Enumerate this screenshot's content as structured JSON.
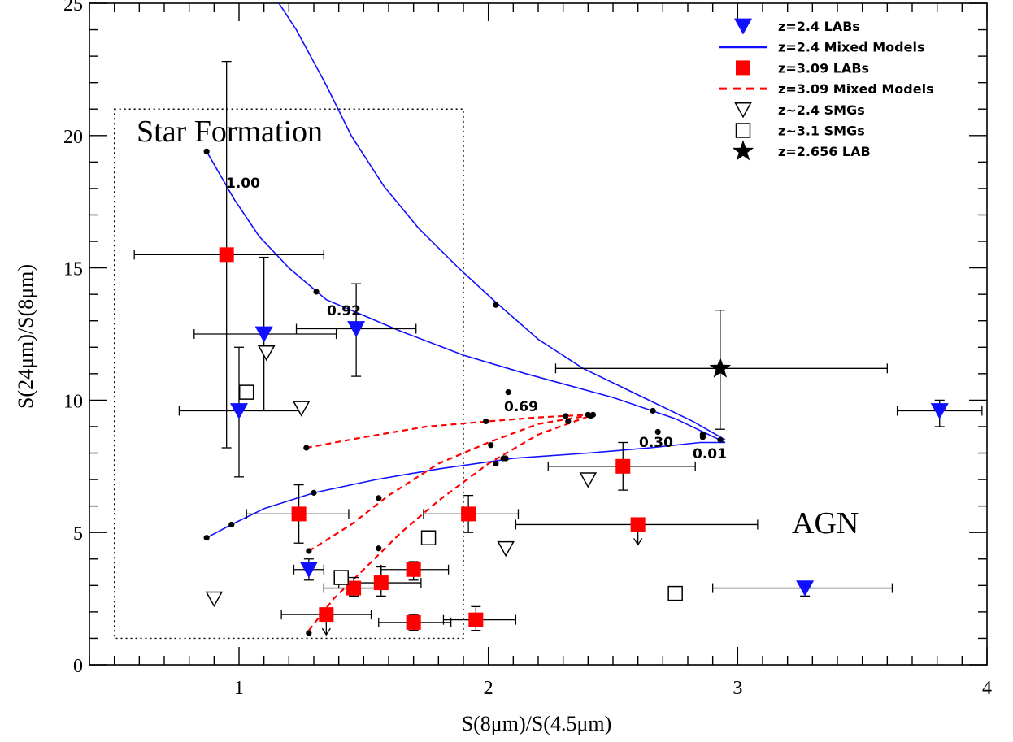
{
  "chart_data": {
    "type": "scatter",
    "xlabel": "S(8μm)/S(4.5μm)",
    "ylabel": "S(24μm)/S(8μm)",
    "xlim": [
      0.4,
      4.0
    ],
    "ylim": [
      0,
      25
    ],
    "xticks": [
      1,
      2,
      3,
      4
    ],
    "yticks": [
      0,
      5,
      10,
      15,
      20,
      25
    ],
    "grid": false,
    "legend_position": "top-right",
    "legend": [
      {
        "label": "z=2.4 LABs",
        "symbol": "triangle-down-filled",
        "color": "#1010ff"
      },
      {
        "label": "z=2.4 Mixed Models",
        "symbol": "solid-line",
        "color": "#1010ff"
      },
      {
        "label": "z=3.09 LABs",
        "symbol": "square-filled",
        "color": "#ff0000"
      },
      {
        "label": "z=3.09 Mixed Models",
        "symbol": "dashed-line",
        "color": "#ff0000"
      },
      {
        "label": "z~2.4 SMGs",
        "symbol": "triangle-down-open",
        "color": "#000000"
      },
      {
        "label": "z~3.1 SMGs",
        "symbol": "square-open",
        "color": "#000000"
      },
      {
        "label": "z=2.656 LAB",
        "symbol": "star-filled",
        "color": "#000000"
      }
    ],
    "annotations": {
      "star_formation": "Star Formation",
      "agn": "AGN",
      "frac_100": "1.00",
      "frac_092": "0.92",
      "frac_069": "0.69",
      "frac_030": "0.30",
      "frac_001": "0.01"
    },
    "star_formation_box": {
      "x": [
        0.5,
        1.9
      ],
      "y": [
        1.0,
        21.0
      ]
    },
    "series": [
      {
        "name": "z=2.4 LABs",
        "marker": "triangle-down-filled",
        "color": "#1010ff",
        "points": [
          {
            "x": 1.1,
            "y": 12.5,
            "xerr": [
              0.82,
              1.39
            ],
            "yerr": [
              9.6,
              15.4
            ]
          },
          {
            "x": 1.47,
            "y": 12.7,
            "xerr": [
              1.23,
              1.71
            ],
            "yerr": [
              10.9,
              14.4
            ]
          },
          {
            "x": 1.0,
            "y": 9.6,
            "xerr": [
              0.76,
              1.25
            ],
            "yerr": [
              7.1,
              12.0
            ]
          },
          {
            "x": 1.28,
            "y": 3.6,
            "xerr": [
              1.22,
              1.34
            ],
            "yerr": [
              3.2,
              4.0
            ]
          },
          {
            "x": 3.81,
            "y": 9.6,
            "xerr": [
              3.64,
              3.98
            ],
            "yerr": [
              9.0,
              10.0
            ]
          },
          {
            "x": 3.27,
            "y": 2.9,
            "xerr": [
              2.9,
              3.62
            ],
            "yerr": [
              2.6,
              3.0
            ]
          }
        ]
      },
      {
        "name": "z=3.09 LABs",
        "marker": "square-filled",
        "color": "#ff0000",
        "points": [
          {
            "x": 0.95,
            "y": 15.5,
            "xerr": [
              0.58,
              1.34
            ],
            "yerr": [
              8.2,
              22.8
            ]
          },
          {
            "x": 1.24,
            "y": 5.7,
            "xerr": [
              1.03,
              1.44
            ],
            "yerr": [
              4.6,
              6.8
            ]
          },
          {
            "x": 1.92,
            "y": 5.7,
            "xerr": [
              1.74,
              2.12
            ],
            "yerr": [
              5.0,
              6.4
            ]
          },
          {
            "x": 2.54,
            "y": 7.5,
            "xerr": [
              2.24,
              2.83
            ],
            "yerr": [
              6.6,
              8.4
            ]
          },
          {
            "x": 2.6,
            "y": 5.3,
            "xerr": [
              2.11,
              3.08
            ],
            "limit": "upper"
          },
          {
            "x": 1.7,
            "y": 3.6,
            "xerr": [
              1.57,
              1.84
            ],
            "yerr": [
              3.2,
              3.9
            ]
          },
          {
            "x": 1.57,
            "y": 3.1,
            "xerr": [
              1.4,
              1.73
            ],
            "yerr": [
              2.6,
              3.7
            ]
          },
          {
            "x": 1.46,
            "y": 2.9,
            "xerr": [
              1.34,
              1.57
            ],
            "yerr": [
              2.6,
              3.3
            ]
          },
          {
            "x": 1.35,
            "y": 1.9,
            "xerr": [
              1.17,
              1.53
            ],
            "limit": "upper"
          },
          {
            "x": 1.7,
            "y": 1.6,
            "xerr": [
              1.56,
              1.85
            ],
            "yerr": [
              1.3,
              1.9
            ]
          },
          {
            "x": 1.95,
            "y": 1.7,
            "xerr": [
              1.82,
              2.11
            ],
            "yerr": [
              1.3,
              2.2
            ]
          }
        ]
      },
      {
        "name": "z~2.4 SMGs",
        "marker": "triangle-down-open",
        "color": "#000000",
        "points": [
          {
            "x": 1.11,
            "y": 11.8
          },
          {
            "x": 1.25,
            "y": 9.7
          },
          {
            "x": 2.4,
            "y": 7.0
          },
          {
            "x": 2.07,
            "y": 4.4
          },
          {
            "x": 0.9,
            "y": 2.5
          }
        ]
      },
      {
        "name": "z~3.1 SMGs",
        "marker": "square-open",
        "color": "#000000",
        "points": [
          {
            "x": 1.03,
            "y": 10.3
          },
          {
            "x": 1.76,
            "y": 4.8
          },
          {
            "x": 1.41,
            "y": 3.3
          },
          {
            "x": 2.75,
            "y": 2.7
          }
        ]
      },
      {
        "name": "z=2.656 LAB",
        "marker": "star-filled",
        "color": "#000000",
        "points": [
          {
            "x": 2.93,
            "y": 11.2,
            "xerr": [
              2.27,
              3.6
            ],
            "yerr": [
              8.9,
              13.4
            ]
          }
        ]
      }
    ],
    "model_curves": [
      {
        "name": "z=2.4 Mixed Models",
        "style": "solid",
        "color": "#1010ff",
        "points": [
          [
            2.95,
            8.4
          ],
          [
            2.75,
            9.3
          ],
          [
            2.5,
            10.1
          ],
          [
            2.15,
            11.0
          ],
          [
            1.9,
            11.7
          ],
          [
            1.65,
            12.6
          ],
          [
            1.35,
            13.8
          ],
          [
            1.2,
            15.0
          ],
          [
            1.08,
            16.2
          ],
          [
            0.98,
            17.6
          ],
          [
            0.87,
            19.4
          ]
        ]
      },
      {
        "name": "z=2.4 Mixed Models",
        "style": "solid",
        "color": "#1010ff",
        "points": [
          [
            0.87,
            4.8
          ],
          [
            0.97,
            5.3
          ],
          [
            1.1,
            5.9
          ],
          [
            1.3,
            6.5
          ],
          [
            1.55,
            7.0
          ],
          [
            1.8,
            7.4
          ],
          [
            2.1,
            7.8
          ],
          [
            2.4,
            8.0
          ],
          [
            2.65,
            8.2
          ],
          [
            2.85,
            8.4
          ],
          [
            2.95,
            8.4
          ]
        ]
      },
      {
        "name": "z=2.4 Mixed Models",
        "style": "solid",
        "color": "#1010ff",
        "points": [
          [
            2.95,
            8.5
          ],
          [
            2.82,
            9.2
          ],
          [
            2.6,
            10.2
          ],
          [
            2.38,
            11.2
          ],
          [
            2.2,
            12.3
          ],
          [
            2.03,
            13.7
          ],
          [
            1.88,
            15.0
          ],
          [
            1.72,
            16.5
          ],
          [
            1.58,
            18.1
          ],
          [
            1.45,
            20.0
          ],
          [
            1.35,
            21.9
          ],
          [
            1.23,
            24.0
          ],
          [
            1.16,
            25.0
          ]
        ]
      },
      {
        "name": "z=3.09 Mixed Models",
        "style": "dashed",
        "color": "#ff0000",
        "points": [
          [
            1.27,
            8.2
          ],
          [
            1.5,
            8.6
          ],
          [
            1.75,
            9.0
          ],
          [
            2.0,
            9.2
          ],
          [
            2.2,
            9.35
          ],
          [
            2.4,
            9.45
          ]
        ]
      },
      {
        "name": "z=3.09 Mixed Models",
        "style": "dashed",
        "color": "#ff0000",
        "points": [
          [
            1.28,
            4.3
          ],
          [
            1.45,
            5.3
          ],
          [
            1.6,
            6.4
          ],
          [
            1.8,
            7.6
          ],
          [
            2.0,
            8.4
          ],
          [
            2.2,
            9.1
          ],
          [
            2.42,
            9.45
          ]
        ]
      },
      {
        "name": "z=3.09 Mixed Models",
        "style": "dashed",
        "color": "#ff0000",
        "points": [
          [
            1.28,
            1.3
          ],
          [
            1.38,
            2.5
          ],
          [
            1.5,
            3.6
          ],
          [
            1.65,
            5.0
          ],
          [
            1.8,
            6.2
          ],
          [
            2.0,
            7.6
          ],
          [
            2.2,
            8.7
          ],
          [
            2.42,
            9.45
          ]
        ]
      }
    ],
    "model_points": [
      [
        0.87,
        19.4
      ],
      [
        1.31,
        14.1
      ],
      [
        2.08,
        10.3
      ],
      [
        2.4,
        9.45
      ],
      [
        2.68,
        8.8
      ],
      [
        2.86,
        8.6
      ],
      [
        2.93,
        8.5
      ],
      [
        0.87,
        4.8
      ],
      [
        0.97,
        5.3
      ],
      [
        1.3,
        6.5
      ],
      [
        1.56,
        6.3
      ],
      [
        2.03,
        7.6
      ],
      [
        2.06,
        7.8
      ],
      [
        2.03,
        13.6
      ],
      [
        2.66,
        9.6
      ],
      [
        2.86,
        8.7
      ],
      [
        1.27,
        8.2
      ],
      [
        1.99,
        9.2
      ],
      [
        2.31,
        9.4
      ],
      [
        2.32,
        9.2
      ],
      [
        2.41,
        9.4
      ],
      [
        2.42,
        9.45
      ],
      [
        1.28,
        4.3
      ],
      [
        1.56,
        4.4
      ],
      [
        2.01,
        8.3
      ],
      [
        2.07,
        7.8
      ],
      [
        1.28,
        1.2
      ]
    ]
  }
}
